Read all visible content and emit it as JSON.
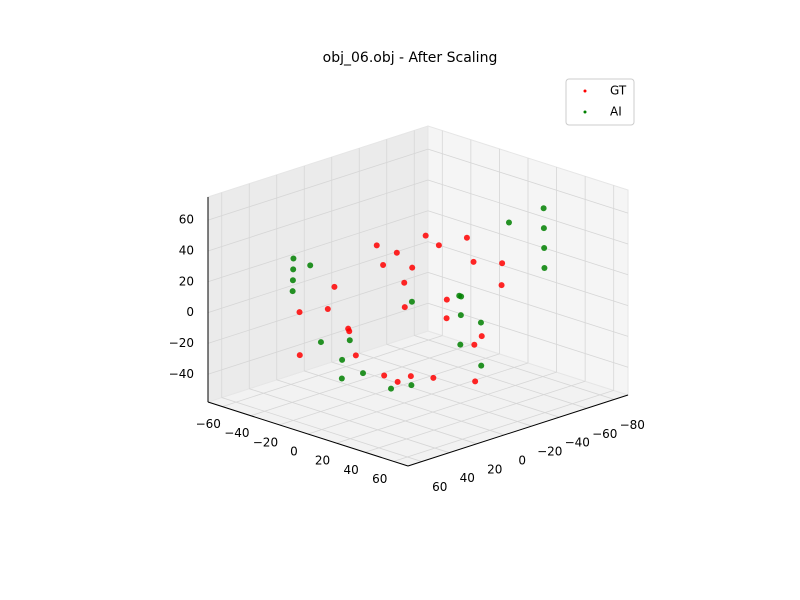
{
  "chart_data": {
    "type": "scatter3d",
    "title": "obj_06.obj - After Scaling",
    "xlim": [
      -70,
      70
    ],
    "ylim": [
      -90,
      70
    ],
    "zlim": [
      -58,
      75
    ],
    "xticks": [
      {
        "value": -60,
        "label": "−60"
      },
      {
        "value": -40,
        "label": "−40"
      },
      {
        "value": -20,
        "label": "−20"
      },
      0,
      20,
      40,
      60
    ],
    "yticks": [
      {
        "value": -80,
        "label": "−80"
      },
      {
        "value": -60,
        "label": "−60"
      },
      {
        "value": -40,
        "label": "−40"
      },
      {
        "value": -20,
        "label": "−20"
      },
      0,
      20,
      40,
      60
    ],
    "zticks": [
      {
        "value": -40,
        "label": "−40"
      },
      {
        "value": -20,
        "label": "−20"
      },
      0,
      20,
      40,
      60
    ],
    "grid": true,
    "legend": "upper right",
    "series": [
      {
        "name": "GT",
        "color": "#ff0000",
        "x": [
          0,
          10,
          -10,
          20,
          -20,
          5,
          15,
          -5,
          25,
          30,
          -15,
          0,
          10,
          20,
          -25,
          -30,
          35,
          40,
          5,
          -10,
          15,
          0,
          30,
          -20,
          10,
          25,
          -5,
          20
        ],
        "y": [
          0,
          10,
          5,
          -10,
          20,
          -20,
          -30,
          30,
          -5,
          10,
          40,
          20,
          -40,
          -50,
          50,
          45,
          -20,
          -10,
          10,
          -5,
          0,
          40,
          -40,
          30,
          25,
          -25,
          -10,
          15
        ],
        "z": [
          20,
          10,
          30,
          0,
          -10,
          40,
          45,
          -20,
          15,
          -30,
          10,
          50,
          25,
          10,
          -20,
          5,
          -10,
          -35,
          -40,
          35,
          55,
          0,
          30,
          20,
          -30,
          -20,
          -45,
          40
        ]
      },
      {
        "name": "AI",
        "color": "#008000",
        "x": [
          -20,
          -25,
          -15,
          -30,
          -10,
          40,
          45,
          35,
          50,
          30,
          0,
          10,
          -5,
          20,
          25,
          5,
          -15,
          15,
          30,
          -10,
          0,
          20,
          10,
          35
        ],
        "y": [
          60,
          55,
          65,
          50,
          58,
          -60,
          -55,
          -65,
          -50,
          -45,
          30,
          20,
          40,
          -20,
          -30,
          0,
          45,
          10,
          -10,
          35,
          -40,
          -35,
          50,
          -5
        ],
        "z": [
          40,
          30,
          50,
          20,
          45,
          50,
          40,
          60,
          30,
          55,
          -30,
          -40,
          -20,
          -20,
          -35,
          -45,
          -10,
          15,
          5,
          -35,
          0,
          -10,
          0,
          20
        ]
      }
    ]
  }
}
